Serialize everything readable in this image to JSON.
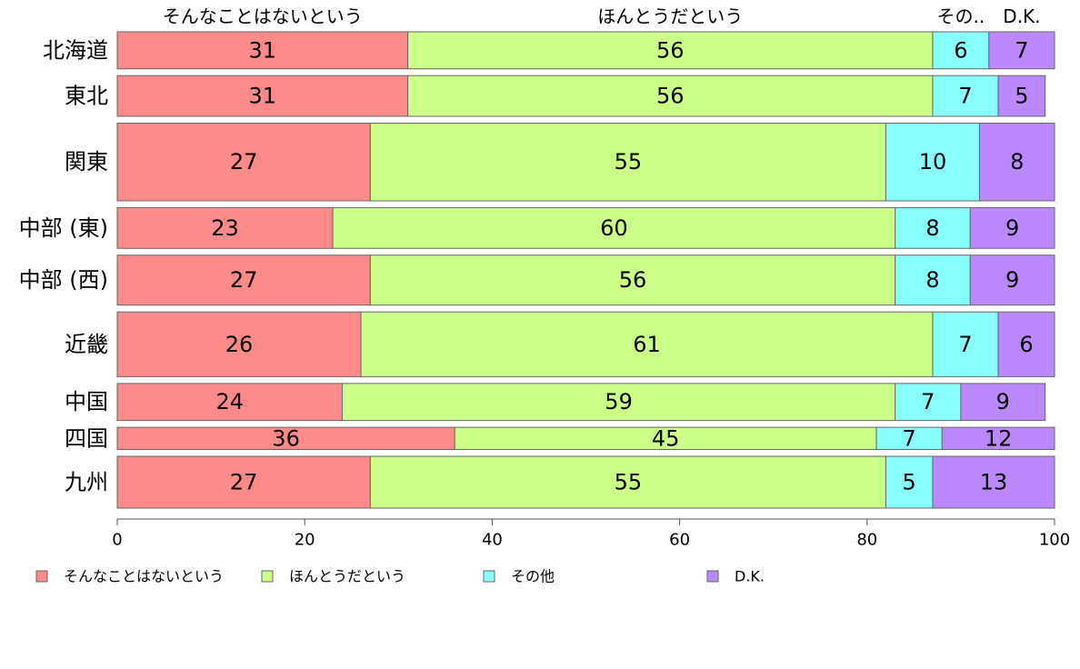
{
  "chart_data": {
    "type": "bar",
    "orientation": "horizontal",
    "stacked": true,
    "categories": [
      "北海道",
      "東北",
      "関東",
      "中部 (東)",
      "中部 (西)",
      "近畿",
      "中国",
      "四国",
      "九州"
    ],
    "series": [
      {
        "name": "そんなことはないという",
        "color": "#ff8a8a",
        "values": [
          31,
          31,
          27,
          23,
          27,
          26,
          24,
          36,
          27
        ]
      },
      {
        "name": "ほんとうだという",
        "color": "#ccff88",
        "values": [
          56,
          56,
          55,
          60,
          56,
          61,
          59,
          45,
          55
        ]
      },
      {
        "name": "その他",
        "color": "#88ffff",
        "values": [
          6,
          7,
          10,
          8,
          8,
          7,
          7,
          7,
          5
        ]
      },
      {
        "name": "D.K.",
        "color": "#bb88ff",
        "values": [
          7,
          5,
          8,
          9,
          9,
          6,
          9,
          12,
          13
        ]
      }
    ],
    "bar_weights": [
      1.0,
      1.1,
      2.1,
      1.1,
      1.35,
      1.75,
      1.0,
      0.6,
      1.4
    ],
    "top_labels": [
      "そんなことはないという",
      "ほんとうだという",
      "その..",
      "D.K."
    ],
    "xlim": [
      0,
      100
    ],
    "xticks": [
      0,
      20,
      40,
      60,
      80,
      100
    ],
    "legend_position": "bottom",
    "grid": false
  }
}
